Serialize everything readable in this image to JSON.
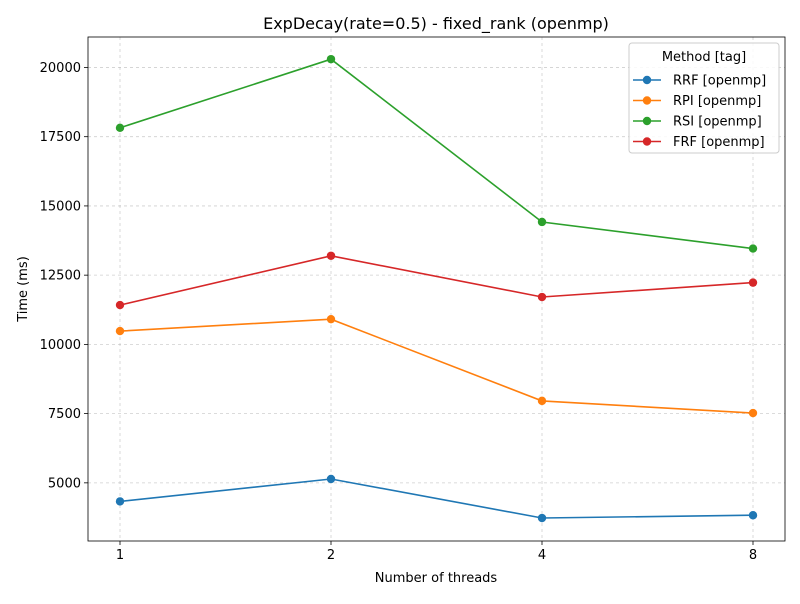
{
  "chart_data": {
    "type": "line",
    "title": "ExpDecay(rate=0.5) - fixed_rank (openmp)",
    "xlabel": "Number of threads",
    "ylabel": "Time (ms)",
    "x": [
      1,
      2,
      4,
      8
    ],
    "x_tick_labels": [
      "1",
      "2",
      "4",
      "8"
    ],
    "x_scale": "log2",
    "y_ticks": [
      5000,
      7500,
      10000,
      12500,
      15000,
      17500,
      20000
    ],
    "y_tick_labels": [
      "5000",
      "7500",
      "10000",
      "12500",
      "15000",
      "17500",
      "20000"
    ],
    "ylim": [
      2900,
      21100
    ],
    "grid": true,
    "legend": {
      "title": "Method [tag]",
      "placement": "top-right"
    },
    "series": [
      {
        "name": "RRF [openmp]",
        "color": "#1f77b4",
        "values": [
          4330,
          5140,
          3730,
          3830
        ]
      },
      {
        "name": "RPI [openmp]",
        "color": "#ff7f0e",
        "values": [
          10480,
          10910,
          7960,
          7520
        ]
      },
      {
        "name": "RSI [openmp]",
        "color": "#2ca02c",
        "values": [
          17820,
          20300,
          14420,
          13460
        ]
      },
      {
        "name": "FRF [openmp]",
        "color": "#d62728",
        "values": [
          11420,
          13200,
          11710,
          12230
        ]
      }
    ]
  }
}
